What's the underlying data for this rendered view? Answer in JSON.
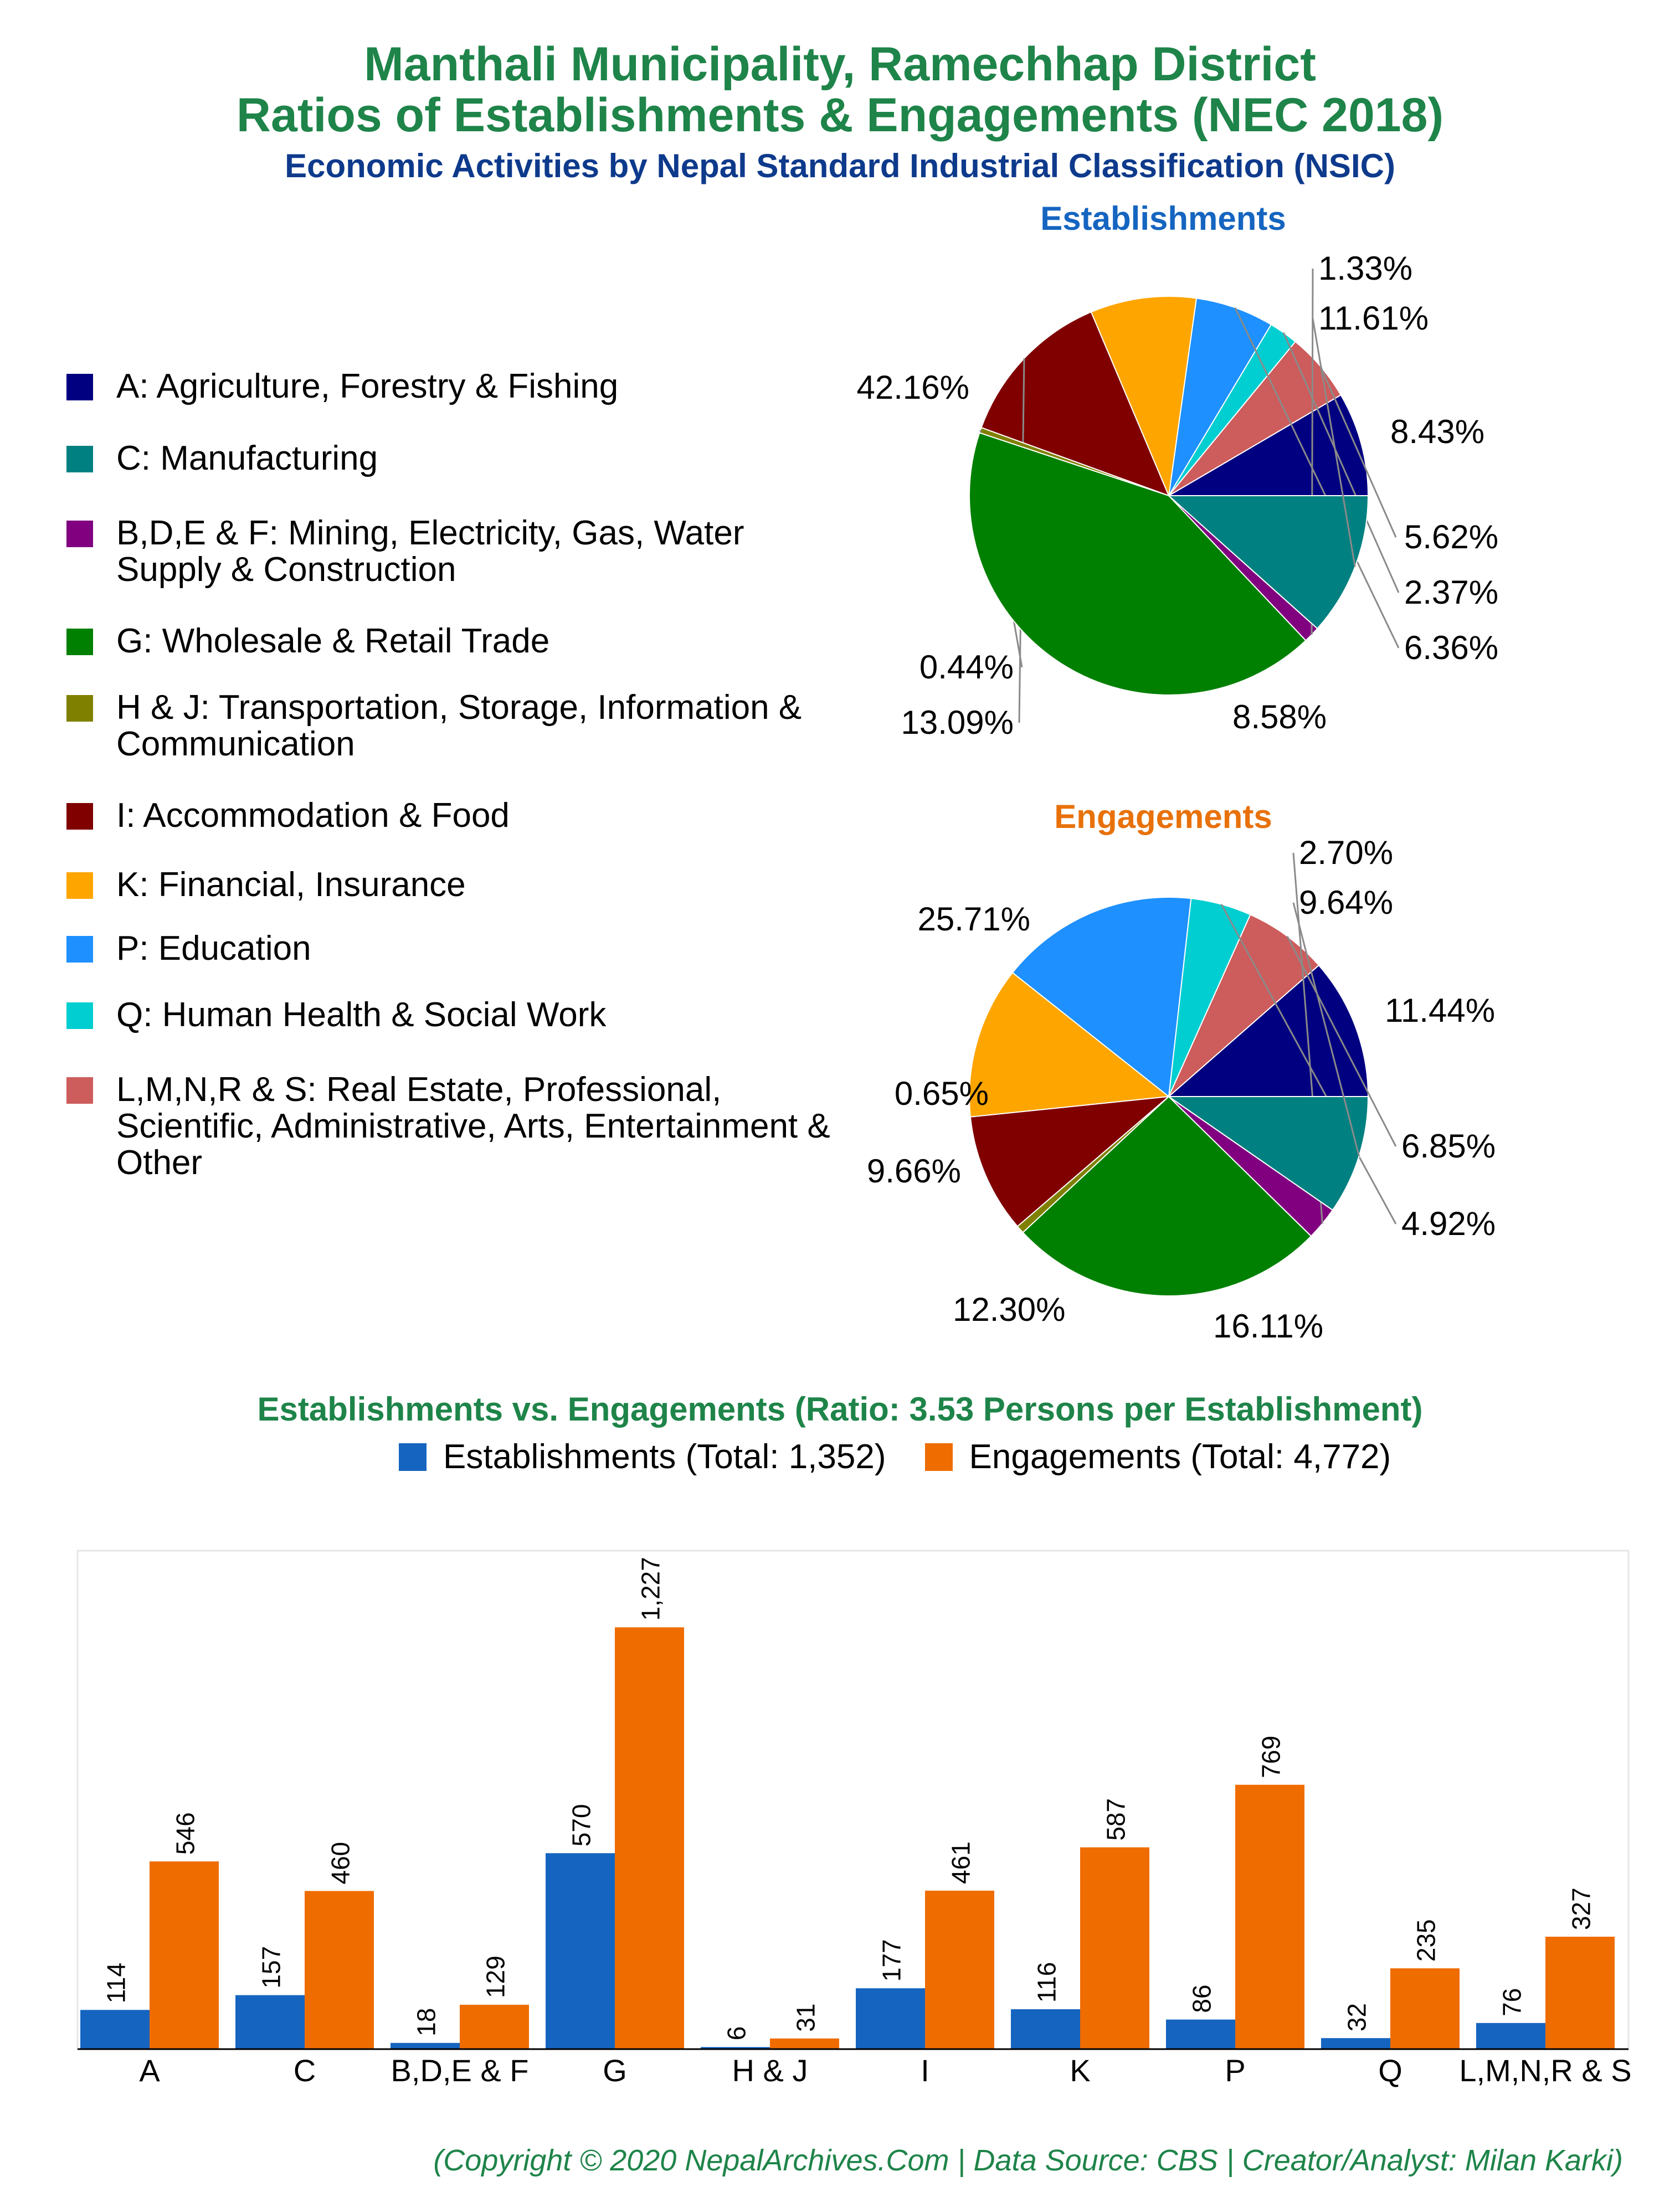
{
  "header": {
    "title_line1": "Manthali Municipality, Ramechhap District",
    "title_line2": "Ratios of Establishments & Engagements (NEC 2018)",
    "subtitle": "Economic Activities by Nepal Standard Industrial Classification (NSIC)"
  },
  "legend": [
    {
      "label": "A: Agriculture, Forestry & Fishing",
      "color": "#000080"
    },
    {
      "label": "C: Manufacturing",
      "color": "#008080"
    },
    {
      "label": "B,D,E & F: Mining, Electricity, Gas, Water Supply & Construction",
      "color": "#800080"
    },
    {
      "label": "G: Wholesale & Retail Trade",
      "color": "#008000"
    },
    {
      "label": "H & J: Transportation, Storage, Information & Communication",
      "color": "#808000"
    },
    {
      "label": "I: Accommodation & Food",
      "color": "#800000"
    },
    {
      "label": "K: Financial, Insurance",
      "color": "#FFA500"
    },
    {
      "label": "P: Education",
      "color": "#1E90FF"
    },
    {
      "label": "Q: Human Health & Social Work",
      "color": "#00CED1"
    },
    {
      "label": "L,M,N,R & S: Real Estate, Professional, Scientific, Administrative, Arts, Entertainment & Other",
      "color": "#CD5C5C"
    }
  ],
  "chart_data": [
    {
      "type": "pie",
      "title": "Establishments",
      "title_color": "#1565c0",
      "slices": [
        {
          "category": "A",
          "value": 8.43,
          "label": "8.43%"
        },
        {
          "category": "L,M,N,R & S",
          "value": 5.62,
          "label": "5.62%"
        },
        {
          "category": "Q",
          "value": 2.37,
          "label": "2.37%"
        },
        {
          "category": "P",
          "value": 6.36,
          "label": "6.36%"
        },
        {
          "category": "K",
          "value": 8.58,
          "label": "8.58%"
        },
        {
          "category": "I",
          "value": 13.09,
          "label": "13.09%"
        },
        {
          "category": "H & J",
          "value": 0.44,
          "label": "0.44%"
        },
        {
          "category": "G",
          "value": 42.16,
          "label": "42.16%"
        },
        {
          "category": "B,D,E & F",
          "value": 1.33,
          "label": "1.33%"
        },
        {
          "category": "C",
          "value": 11.61,
          "label": "11.61%"
        }
      ]
    },
    {
      "type": "pie",
      "title": "Engagements",
      "title_color": "#e8710a",
      "slices": [
        {
          "category": "A",
          "value": 11.44,
          "label": "11.44%"
        },
        {
          "category": "L,M,N,R & S",
          "value": 6.85,
          "label": "6.85%"
        },
        {
          "category": "Q",
          "value": 4.92,
          "label": "4.92%"
        },
        {
          "category": "P",
          "value": 16.11,
          "label": "16.11%"
        },
        {
          "category": "K",
          "value": 12.3,
          "label": "12.30%"
        },
        {
          "category": "I",
          "value": 9.66,
          "label": "9.66%"
        },
        {
          "category": "H & J",
          "value": 0.65,
          "label": "0.65%"
        },
        {
          "category": "G",
          "value": 25.71,
          "label": "25.71%"
        },
        {
          "category": "B,D,E & F",
          "value": 2.7,
          "label": "2.70%"
        },
        {
          "category": "C",
          "value": 9.64,
          "label": "9.64%"
        }
      ]
    },
    {
      "type": "bar",
      "title": "Establishments vs. Engagements (Ratio: 3.53 Persons per Establishment)",
      "categories": [
        "A",
        "C",
        "B,D,E & F",
        "G",
        "H & J",
        "I",
        "K",
        "P",
        "Q",
        "L,M,N,R & S"
      ],
      "series": [
        {
          "name": "Establishments (Total: 1,352)",
          "color": "#1565c0",
          "values": [
            114,
            157,
            18,
            570,
            6,
            177,
            116,
            86,
            32,
            76
          ],
          "labels": [
            "114",
            "157",
            "18",
            "570",
            "6",
            "177",
            "116",
            "86",
            "32",
            "76"
          ]
        },
        {
          "name": "Engagements (Total: 4,772)",
          "color": "#ef6c00",
          "values": [
            546,
            460,
            129,
            1227,
            31,
            461,
            587,
            769,
            235,
            327
          ],
          "labels": [
            "546",
            "460",
            "129",
            "1,227",
            "31",
            "461",
            "587",
            "769",
            "235",
            "327"
          ]
        }
      ],
      "ylim": [
        0,
        1450
      ],
      "grid": false
    }
  ],
  "footer": "(Copyright © 2020 NepalArchives.Com | Data Source: CBS | Creator/Analyst: Milan Karki)"
}
